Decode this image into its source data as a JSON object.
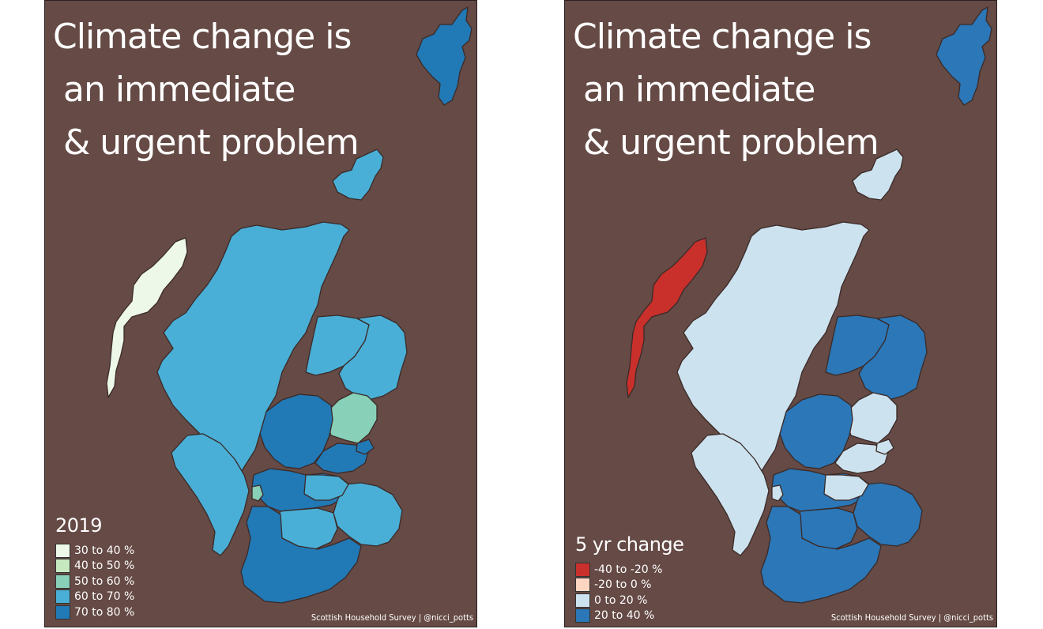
{
  "panels": [
    {
      "title_lines": [
        "Climate change is",
        " an immediate",
        " & urgent problem"
      ],
      "legend_title": "2019",
      "legend": [
        {
          "label": "30 to 40 %",
          "color": "#edf8e9"
        },
        {
          "label": "40 to 50 %",
          "color": "#c7e9c0"
        },
        {
          "label": "50 to 60 %",
          "color": "#88d0b8"
        },
        {
          "label": "60 to 70 %",
          "color": "#4aafd6"
        },
        {
          "label": "70 to 80 %",
          "color": "#2179b5"
        }
      ],
      "caption": "Scottish Household Survey | @nicci_potts"
    },
    {
      "title_lines": [
        "Climate change is",
        " an immediate",
        " & urgent problem"
      ],
      "legend_title": "5 yr change",
      "legend": [
        {
          "label": "-40 to -20 %",
          "color": "#c9302c"
        },
        {
          "label": "-20 to 0 %",
          "color": "#fdd6c2"
        },
        {
          "label": "0 to 20 %",
          "color": "#cde2ef"
        },
        {
          "label": "20 to 40 %",
          "color": "#2b77b7"
        }
      ],
      "caption": "Scottish Household Survey | @nicci_potts"
    }
  ],
  "colors": {
    "background": "#654a45",
    "border": "#3a2a28"
  },
  "regions": {
    "left": {
      "shetland": "#2179b5",
      "orkney": "#4aafd6",
      "western_isles": "#edf8e9",
      "highland": "#4aafd6",
      "moray": "#4aafd6",
      "aberdeenshire": "#4aafd6",
      "angus": "#88d0b8",
      "perth_kinross": "#2179b5",
      "fife": "#2179b5",
      "argyll": "#4aafd6",
      "central_belt": "#2179b5",
      "inverclyde": "#88d0b8",
      "borders": "#4aafd6",
      "lothians": "#4aafd6",
      "south_lanarkshire": "#4aafd6",
      "ayrshire_dumfries": "#2179b5",
      "dundee": "#2179b5"
    },
    "right": {
      "shetland": "#2b77b7",
      "orkney": "#cde2ef",
      "western_isles": "#c9302c",
      "highland": "#cde2ef",
      "moray": "#2b77b7",
      "aberdeenshire": "#2b77b7",
      "angus": "#cde2ef",
      "perth_kinross": "#2b77b7",
      "fife": "#cde2ef",
      "argyll": "#cde2ef",
      "central_belt": "#2b77b7",
      "inverclyde": "#cde2ef",
      "borders": "#2b77b7",
      "lothians": "#cde2ef",
      "south_lanarkshire": "#2b77b7",
      "ayrshire_dumfries": "#2b77b7",
      "dundee": "#cde2ef"
    }
  }
}
